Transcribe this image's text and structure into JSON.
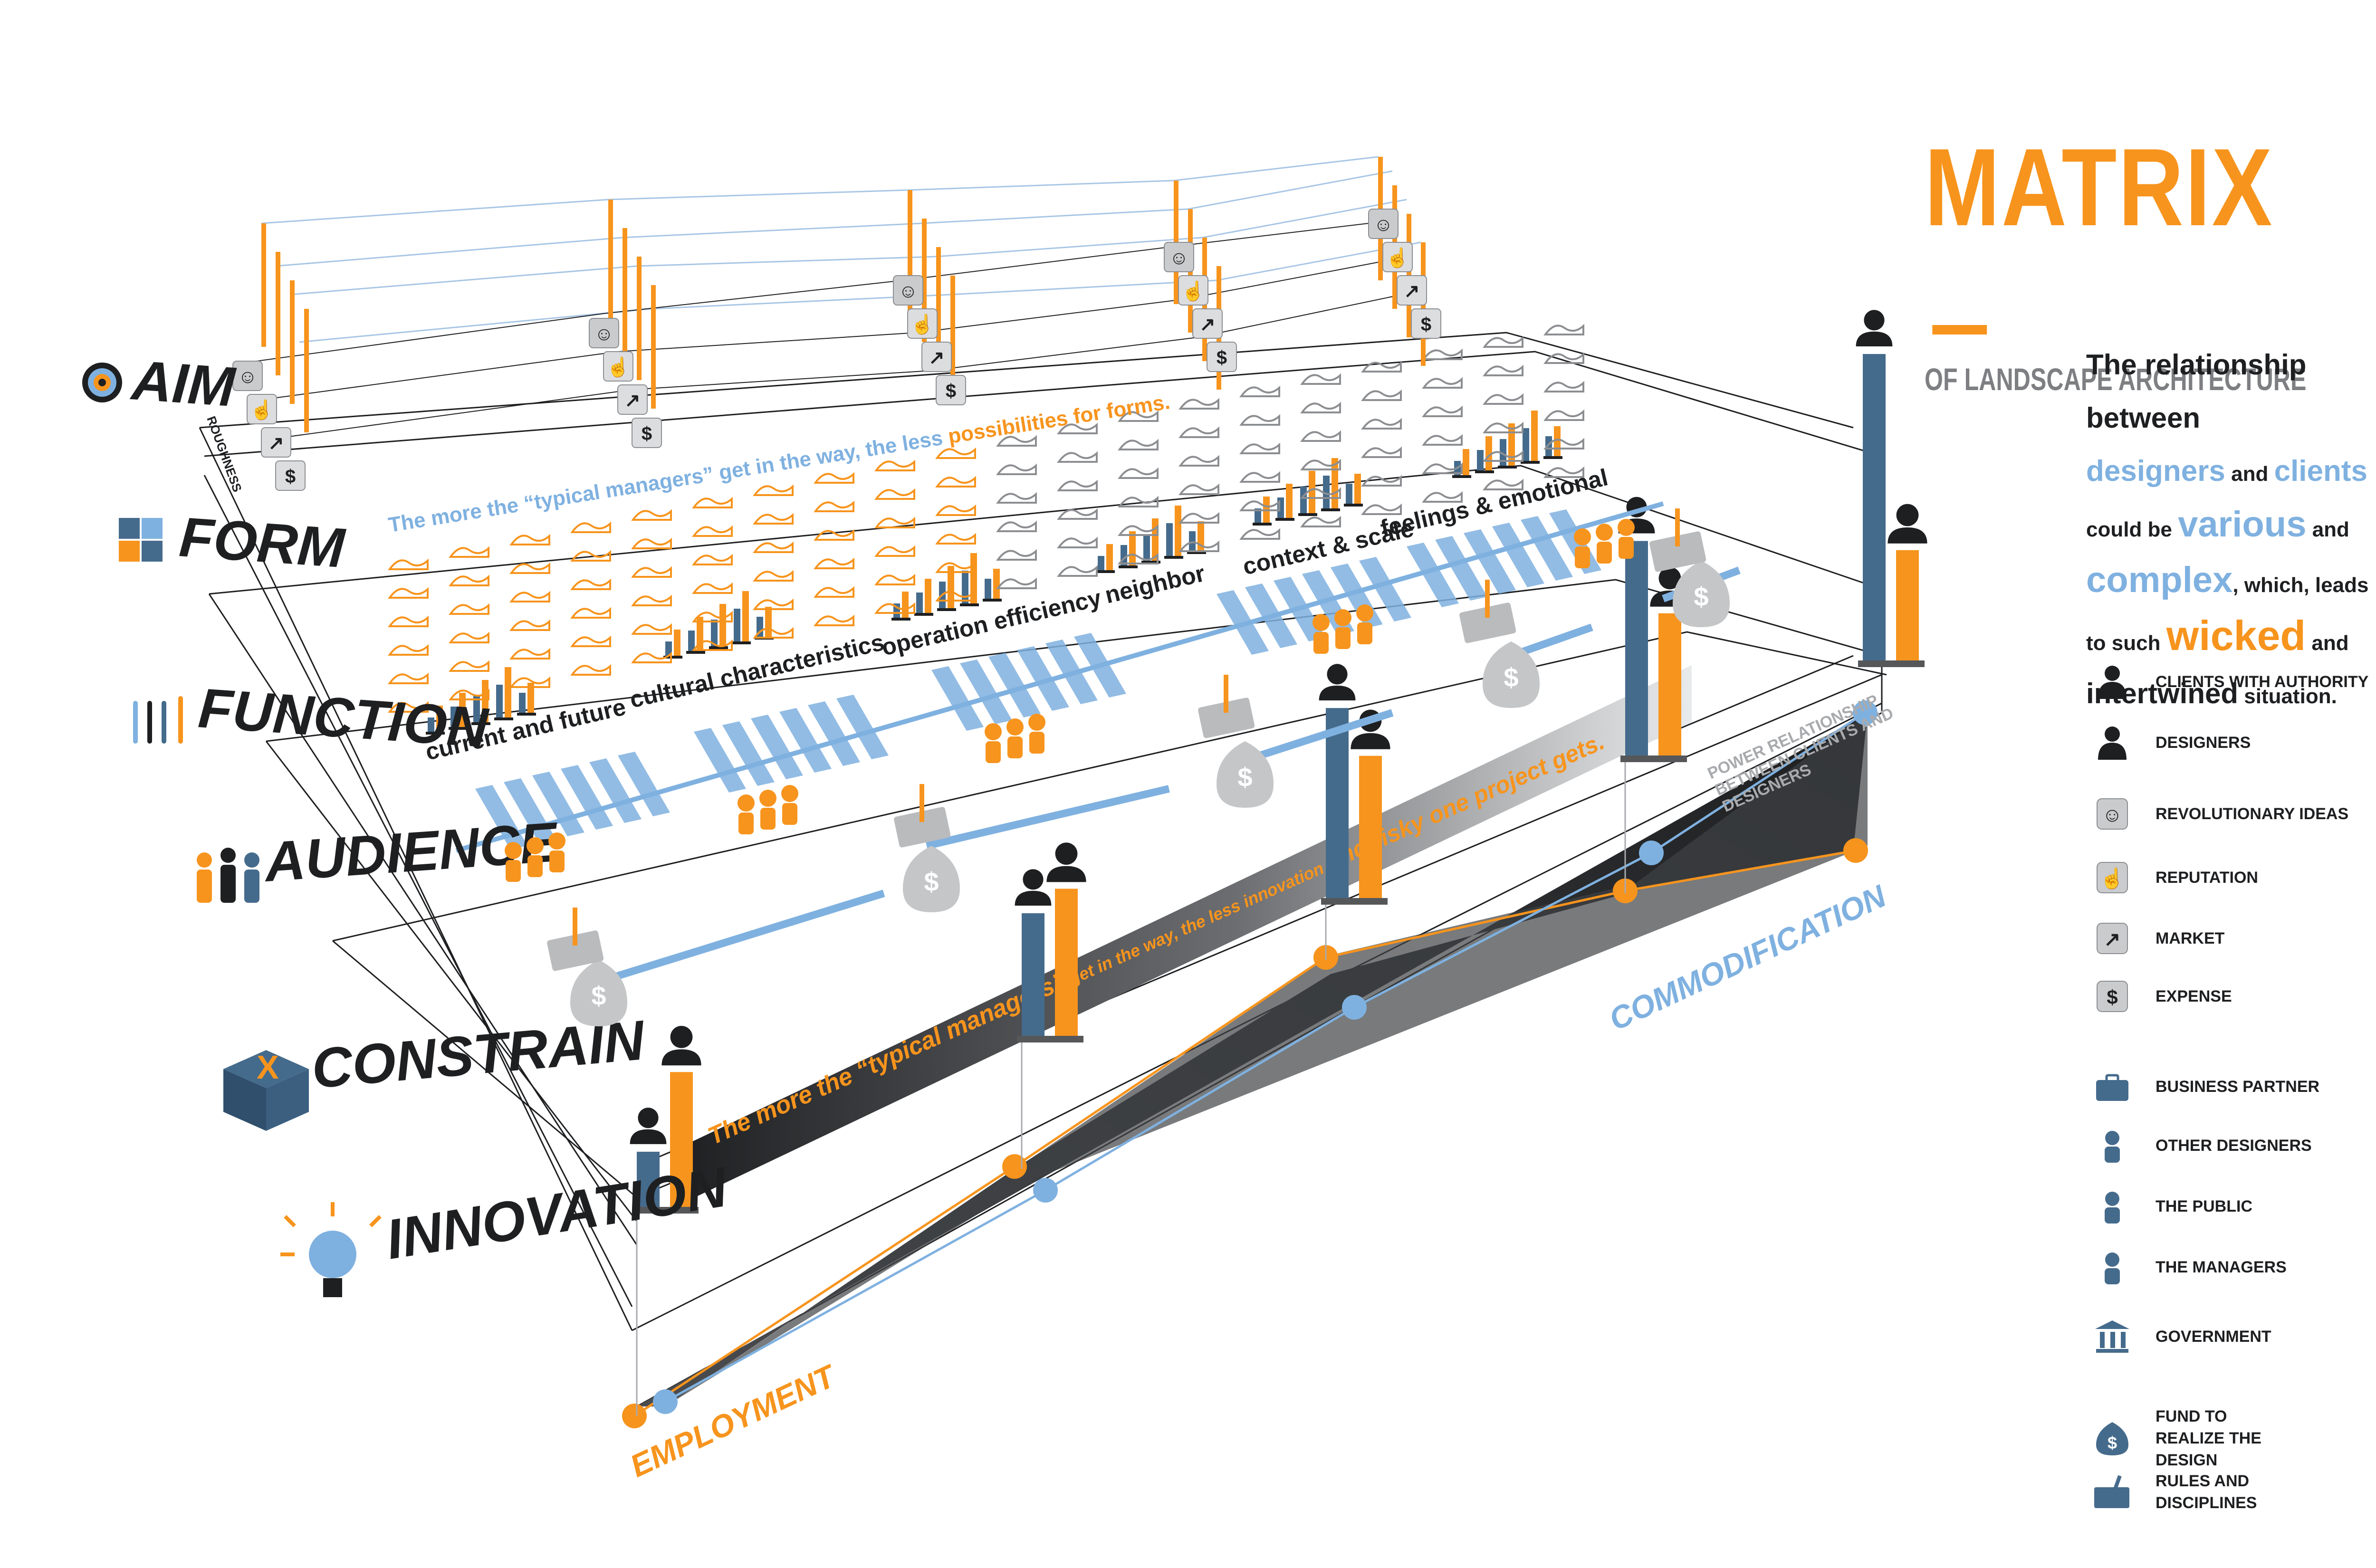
{
  "title": {
    "main": "MATRIX",
    "subtitle": "OF LANDSCAPE ARCHITECTURE"
  },
  "intro": {
    "p1": "The relationship between",
    "designers": "designers",
    "and1": " and ",
    "clients": "clients",
    "p2": "could be ",
    "various": "various",
    "and2": " and",
    "complex": "complex",
    "p3": ", which, leads",
    "p4": "to such ",
    "wicked": "wicked",
    "and3": " and",
    "intertwined": "intertwined",
    "situation": " situation."
  },
  "layers": [
    "AIM",
    "FORM",
    "FUNCTION",
    "AUDIENCE",
    "CONSTRAIN",
    "INNOVATION"
  ],
  "axes": {
    "left": "EMPLOYMENT",
    "right": "COMMODIFICATION"
  },
  "function_categories": [
    "current and future",
    "cultural characteristics",
    "operation efficiency",
    "neighbor",
    "context & scale",
    "feelings & emotional"
  ],
  "quotes": {
    "form_quote_a": "The more the “typical managers” get in the way, the less ",
    "form_quote_b": "possibilities for forms.",
    "band_quote_a": "The more the “typical managers”",
    "band_quote_b": " get in the way, the less innovation",
    "band_quote_c": " and risky one project gets.",
    "power_1": "POWER RELATIONSHIP",
    "power_2": "BETWEEN CLIENTS AND",
    "power_3": "DESIGNERS"
  },
  "side_labels": {
    "form_small": "ROUGHNESS"
  },
  "legend": [
    {
      "icon": "client-authority-icon",
      "label": "CLIENTS WITH AUTHORITY"
    },
    {
      "icon": "designer-icon",
      "label": "DESIGNERS"
    },
    {
      "icon": "revolutionary-ideas-icon",
      "label": "REVOLUTIONARY IDEAS"
    },
    {
      "icon": "reputation-icon",
      "label": "REPUTATION"
    },
    {
      "icon": "market-icon",
      "label": "MARKET"
    },
    {
      "icon": "expense-icon",
      "label": "EXPENSE"
    },
    {
      "icon": "business-partner-icon",
      "label": "BUSINESS PARTNER"
    },
    {
      "icon": "other-designers-icon",
      "label": "OTHER DESIGNERS"
    },
    {
      "icon": "public-icon",
      "label": "THE PUBLIC"
    },
    {
      "icon": "managers-icon",
      "label": "THE MANAGERS"
    },
    {
      "icon": "government-icon",
      "label": "GOVERNMENT"
    },
    {
      "icon": "fund-icon",
      "label": "FUND TO REALIZE THE DESIGN"
    },
    {
      "icon": "rules-icon",
      "label": "RULES AND DISCIPLINES"
    }
  ],
  "colors": {
    "orange": "#f7941d",
    "blue": "#7fb1e0",
    "steel": "#456b8c",
    "dark": "#1e1f21",
    "grey": "#a8aaad"
  },
  "power_bars": [
    {
      "client": 0.18,
      "designer": 0.55
    },
    {
      "client": 0.4,
      "designer": 0.6
    },
    {
      "client": 0.62,
      "designer": 0.58
    },
    {
      "client": 0.7,
      "designer": 0.58
    },
    {
      "client": 1.0,
      "designer": 0.45
    }
  ]
}
